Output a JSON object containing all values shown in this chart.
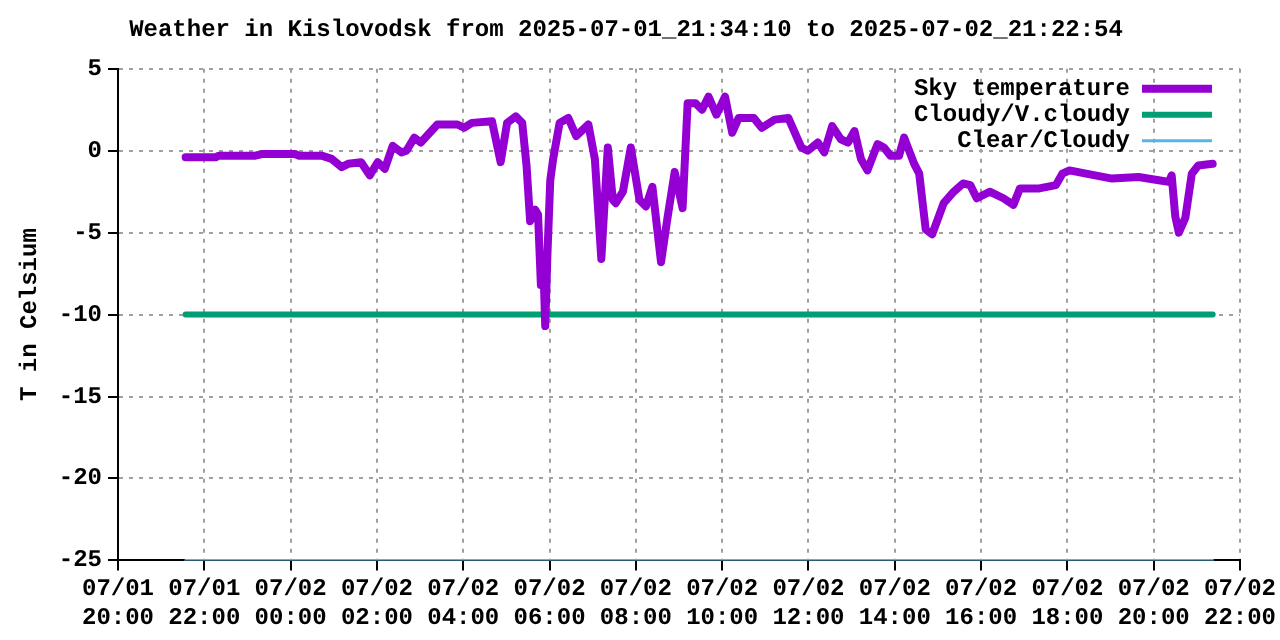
{
  "chart_data": {
    "type": "line",
    "title": "Weather in Kislovodsk from 2025-07-01_21:34:10 to 2025-07-02_21:22:54",
    "ylabel": "T in Celsium",
    "xlim": [
      "2025-07-01T20:00",
      "2025-07-02T22:00"
    ],
    "xticks": [
      {
        "value": "2025-07-01T20:00",
        "label": "07/01 20:00"
      },
      {
        "value": "2025-07-01T22:00",
        "label": "07/01 22:00"
      },
      {
        "value": "2025-07-02T00:00",
        "label": "07/02 00:00"
      },
      {
        "value": "2025-07-02T02:00",
        "label": "07/02 02:00"
      },
      {
        "value": "2025-07-02T04:00",
        "label": "07/02 04:00"
      },
      {
        "value": "2025-07-02T06:00",
        "label": "07/02 06:00"
      },
      {
        "value": "2025-07-02T08:00",
        "label": "07/02 08:00"
      },
      {
        "value": "2025-07-02T10:00",
        "label": "07/02 10:00"
      },
      {
        "value": "2025-07-02T12:00",
        "label": "07/02 12:00"
      },
      {
        "value": "2025-07-02T14:00",
        "label": "07/02 14:00"
      },
      {
        "value": "2025-07-02T16:00",
        "label": "07/02 16:00"
      },
      {
        "value": "2025-07-02T18:00",
        "label": "07/02 18:00"
      },
      {
        "value": "2025-07-02T20:00",
        "label": "07/02 20:00"
      },
      {
        "value": "2025-07-02T22:00",
        "label": "07/02 22:00"
      }
    ],
    "ylim": [
      -25,
      5
    ],
    "yticks": [
      -25,
      -20,
      -15,
      -10,
      -5,
      0,
      5
    ],
    "grid": true,
    "legend": "top right",
    "marker": "none",
    "line_style": "solid",
    "series": [
      {
        "name": "Sky temperature",
        "color": "#9400d3",
        "x": [
          "2025-07-01T21:34",
          "2025-07-01T22:16",
          "2025-07-01T22:20",
          "2025-07-01T23:11",
          "2025-07-01T23:20",
          "2025-07-02T00:06",
          "2025-07-02T00:11",
          "2025-07-02T00:43",
          "2025-07-02T00:57",
          "2025-07-02T01:11",
          "2025-07-02T01:20",
          "2025-07-02T01:38",
          "2025-07-02T01:50",
          "2025-07-02T02:01",
          "2025-07-02T02:11",
          "2025-07-02T02:22",
          "2025-07-02T02:34",
          "2025-07-02T02:41",
          "2025-07-02T02:52",
          "2025-07-02T03:01",
          "2025-07-02T03:24",
          "2025-07-02T03:52",
          "2025-07-02T04:01",
          "2025-07-02T04:12",
          "2025-07-02T04:40",
          "2025-07-02T04:52",
          "2025-07-02T05:01",
          "2025-07-02T05:13",
          "2025-07-02T05:22",
          "2025-07-02T05:28",
          "2025-07-02T05:33",
          "2025-07-02T05:40",
          "2025-07-02T05:44",
          "2025-07-02T05:48",
          "2025-07-02T05:51",
          "2025-07-02T05:54",
          "2025-07-02T05:57",
          "2025-07-02T06:01",
          "2025-07-02T06:05",
          "2025-07-02T06:14",
          "2025-07-02T06:26",
          "2025-07-02T06:37",
          "2025-07-02T06:54",
          "2025-07-02T07:03",
          "2025-07-02T07:12",
          "2025-07-02T07:21",
          "2025-07-02T07:28",
          "2025-07-02T07:32",
          "2025-07-02T07:42",
          "2025-07-02T07:53",
          "2025-07-02T08:05",
          "2025-07-02T08:14",
          "2025-07-02T08:23",
          "2025-07-02T08:35",
          "2025-07-02T08:44",
          "2025-07-02T08:54",
          "2025-07-02T09:05",
          "2025-07-02T09:12",
          "2025-07-02T09:23",
          "2025-07-02T09:32",
          "2025-07-02T09:41",
          "2025-07-02T09:52",
          "2025-07-02T10:04",
          "2025-07-02T10:14",
          "2025-07-02T10:23",
          "2025-07-02T10:44",
          "2025-07-02T10:55",
          "2025-07-02T11:13",
          "2025-07-02T11:32",
          "2025-07-02T11:50",
          "2025-07-02T11:59",
          "2025-07-02T12:13",
          "2025-07-02T12:22",
          "2025-07-02T12:33",
          "2025-07-02T12:45",
          "2025-07-02T12:55",
          "2025-07-02T13:04",
          "2025-07-02T13:13",
          "2025-07-02T13:22",
          "2025-07-02T13:36",
          "2025-07-02T13:45",
          "2025-07-02T13:54",
          "2025-07-02T14:06",
          "2025-07-02T14:13",
          "2025-07-02T14:27",
          "2025-07-02T14:34",
          "2025-07-02T14:43",
          "2025-07-02T14:52",
          "2025-07-02T15:08",
          "2025-07-02T15:22",
          "2025-07-02T15:35",
          "2025-07-02T15:45",
          "2025-07-02T15:54",
          "2025-07-02T16:12",
          "2025-07-02T16:31",
          "2025-07-02T16:45",
          "2025-07-02T16:54",
          "2025-07-02T17:21",
          "2025-07-02T17:44",
          "2025-07-02T17:53",
          "2025-07-02T18:03",
          "2025-07-02T18:26",
          "2025-07-02T19:02",
          "2025-07-02T19:39",
          "2025-07-02T20:07",
          "2025-07-02T20:21",
          "2025-07-02T20:25",
          "2025-07-02T20:30",
          "2025-07-02T20:35",
          "2025-07-02T20:44",
          "2025-07-02T20:53",
          "2025-07-02T21:02",
          "2025-07-02T21:22"
        ],
        "values": [
          -0.4,
          -0.4,
          -0.3,
          -0.3,
          -0.2,
          -0.2,
          -0.3,
          -0.3,
          -0.5,
          -1.0,
          -0.8,
          -0.7,
          -1.5,
          -0.7,
          -1.1,
          0.3,
          -0.1,
          0.0,
          0.8,
          0.5,
          1.6,
          1.6,
          1.4,
          1.7,
          1.8,
          -0.7,
          1.7,
          2.1,
          1.7,
          -0.9,
          -4.3,
          -3.6,
          -3.9,
          -8.2,
          -6.4,
          -10.7,
          -6.4,
          -1.8,
          -0.5,
          1.7,
          2.0,
          0.9,
          1.6,
          -0.5,
          -6.6,
          0.2,
          -3.0,
          -3.2,
          -2.5,
          0.2,
          -3.0,
          -3.4,
          -2.2,
          -6.8,
          -4.1,
          -1.3,
          -3.5,
          2.9,
          2.9,
          2.5,
          3.3,
          2.2,
          3.3,
          1.1,
          2.0,
          2.0,
          1.4,
          1.9,
          2.0,
          0.2,
          0.0,
          0.5,
          -0.1,
          1.5,
          0.7,
          0.5,
          1.2,
          -0.5,
          -1.2,
          0.4,
          0.2,
          -0.3,
          -0.3,
          0.8,
          -0.8,
          -1.4,
          -4.8,
          -5.1,
          -3.2,
          -2.5,
          -2.0,
          -2.1,
          -2.9,
          -2.5,
          -2.9,
          -3.3,
          -2.3,
          -2.3,
          -2.1,
          -1.4,
          -1.2,
          -1.4,
          -1.7,
          -1.6,
          -1.8,
          -1.9,
          -1.5,
          -4.0,
          -5.0,
          -4.1,
          -1.4,
          -0.9,
          -0.8
        ]
      },
      {
        "name": "Cloudy/V.cloudy",
        "color": "#009e73",
        "x": [
          "2025-07-01T21:34",
          "2025-07-02T21:22"
        ],
        "values": [
          -10,
          -10
        ]
      },
      {
        "name": "Clear/Cloudy",
        "color": "#56b4e9",
        "x": [
          "2025-07-01T21:34",
          "2025-07-02T21:22"
        ],
        "values": [
          -25,
          -25
        ]
      }
    ]
  }
}
